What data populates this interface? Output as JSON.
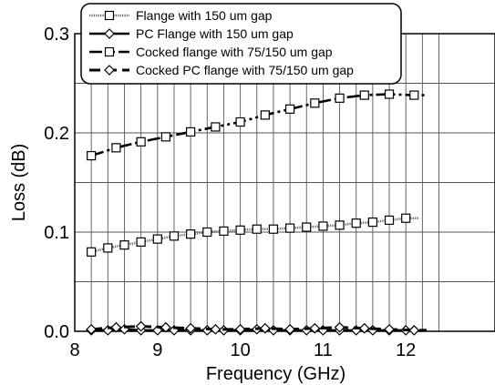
{
  "chart_data": {
    "type": "line",
    "title": "",
    "xlabel": "Frequency (GHz)",
    "ylabel": "Loss (dB)",
    "xlim": [
      8,
      12.5
    ],
    "ylim": [
      0,
      0.3
    ],
    "x_ticks": [
      "8",
      "9",
      "10",
      "11",
      "12"
    ],
    "y_ticks": [
      "0.0",
      "0.1",
      "0.2",
      "0.3"
    ],
    "grid": true,
    "legend_position": "top-left",
    "series": [
      {
        "name": "Flange with 150 um gap",
        "line_style": "dotted-dense",
        "marker": "square",
        "x": [
          8.2,
          8.4,
          8.6,
          8.8,
          9.0,
          9.2,
          9.4,
          9.6,
          9.8,
          10.0,
          10.2,
          10.4,
          10.6,
          10.8,
          11.0,
          11.2,
          11.4,
          11.6,
          11.8,
          12.0
        ],
        "y": [
          0.08,
          0.084,
          0.087,
          0.09,
          0.093,
          0.096,
          0.098,
          0.1,
          0.101,
          0.102,
          0.103,
          0.103,
          0.104,
          0.105,
          0.106,
          0.107,
          0.109,
          0.11,
          0.112,
          0.114
        ]
      },
      {
        "name": "PC Flange with 150 um gap",
        "line_style": "solid",
        "marker": "diamond",
        "x": [
          8.2,
          8.4,
          8.6,
          8.8,
          9.0,
          9.2,
          9.4,
          9.6,
          9.8,
          10.0,
          10.2,
          10.4,
          10.6,
          10.8,
          11.0,
          11.2,
          11.4,
          11.6,
          11.8,
          12.0
        ],
        "y": [
          0.001,
          0.001,
          0.002,
          0.001,
          0.001,
          0.001,
          0.001,
          0.001,
          0.001,
          0.001,
          0.002,
          0.001,
          0.001,
          0.001,
          0.001,
          0.001,
          0.001,
          0.001,
          0.001,
          0.001
        ]
      },
      {
        "name": "Cocked flange with 75/150 um gap",
        "line_style": "dash-dot-dot",
        "marker": "square",
        "x": [
          8.2,
          8.5,
          8.8,
          9.1,
          9.4,
          9.7,
          10.0,
          10.3,
          10.6,
          10.9,
          11.2,
          11.5,
          11.8,
          12.1
        ],
        "y": [
          0.177,
          0.185,
          0.191,
          0.196,
          0.201,
          0.206,
          0.211,
          0.218,
          0.224,
          0.23,
          0.235,
          0.238,
          0.239,
          0.238
        ]
      },
      {
        "name": "Cocked PC flange with 75/150 um gap",
        "line_style": "dashed",
        "marker": "diamond",
        "x": [
          8.2,
          8.5,
          8.8,
          9.1,
          9.4,
          9.7,
          10.0,
          10.3,
          10.6,
          10.9,
          11.2,
          11.5,
          11.8,
          12.1
        ],
        "y": [
          0.002,
          0.004,
          0.005,
          0.004,
          0.003,
          0.002,
          0.002,
          0.003,
          0.002,
          0.003,
          0.004,
          0.003,
          0.002,
          0.001
        ]
      }
    ]
  }
}
